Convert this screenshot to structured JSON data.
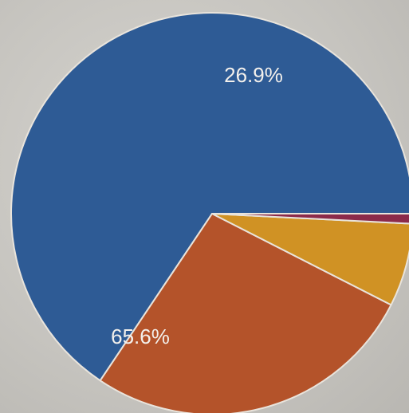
{
  "chart_data": {
    "type": "pie",
    "slices": [
      {
        "value": 65.6,
        "label": "65.6%",
        "color": "#2e5b95"
      },
      {
        "value": 26.9,
        "label": "26.9%",
        "color": "#b4532a"
      },
      {
        "value": 6.7,
        "label": "",
        "color": "#d09224"
      },
      {
        "value": 0.8,
        "label": "",
        "color": "#8c2a4a"
      }
    ],
    "start_angle_deg": 0,
    "direction": "counterclockwise_from_right"
  }
}
